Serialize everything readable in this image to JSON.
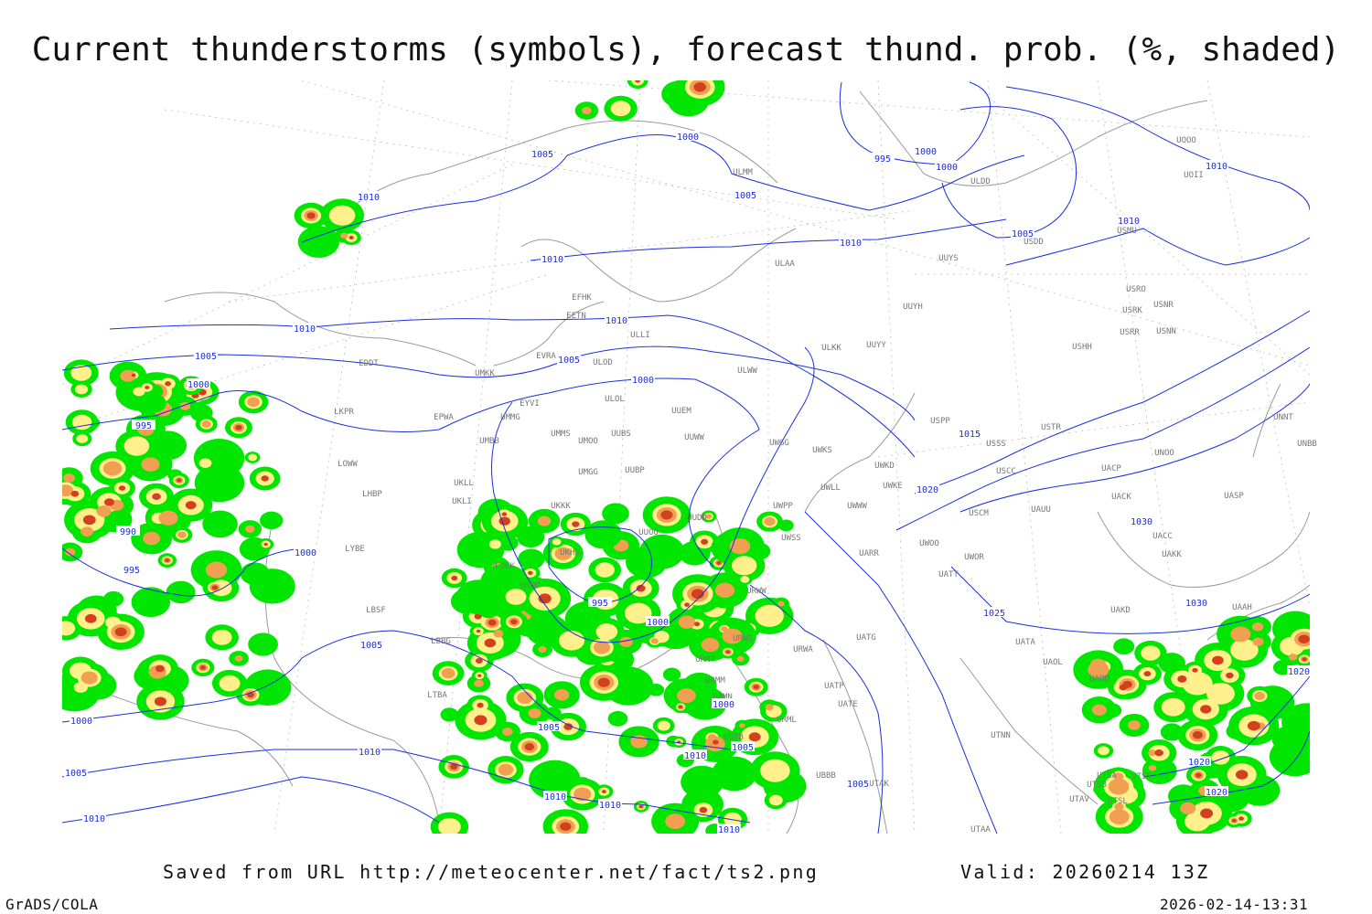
{
  "title": "Current thunderstorms (symbols), forecast thund. prob. (%, shaded)",
  "footer": {
    "source": "Saved from URL http://meteocenter.net/fact/ts2.png",
    "valid": "Valid: 20260214 13Z",
    "software": "GrADS/COLA",
    "timestamp": "2026-02-14-13:31"
  },
  "colors": {
    "isobar": "#1a2ee0",
    "coastline": "#9a9a9a",
    "prob_low": "#00e600",
    "prob_mid": "#fff08c",
    "prob_high": "#f0a050",
    "prob_max": "#d24020"
  },
  "stations": [
    "ULMM",
    "ULDD",
    "UOOO",
    "UOII",
    "USDD",
    "USMU",
    "ULAA",
    "UUYS",
    "UUYH",
    "USRO",
    "USRK",
    "USNR",
    "USRR",
    "USNN",
    "USHH",
    "ULKK",
    "UUYY",
    "EFHK",
    "EETN",
    "ULLI",
    "EVRA",
    "ULOD",
    "ULWW",
    "EDDT",
    "UMKK",
    "EYVI",
    "ULOL",
    "UUEM",
    "LKPR",
    "EPWA",
    "UMMG",
    "UMMS",
    "UMOO",
    "UUBS",
    "UUWW",
    "UMBB",
    "UWGG",
    "UWKS",
    "USPP",
    "USTR",
    "USSS",
    "UNNT",
    "UNBB",
    "UNOO",
    "LOWW",
    "UMGG",
    "UUBP",
    "UWKD",
    "UWKE",
    "UWLL",
    "UWWW",
    "USCC",
    "UACP",
    "UACK",
    "UASP",
    "LHBP",
    "UKLL",
    "UKLI",
    "UKKK",
    "UUDD",
    "UUOO",
    "UWPP",
    "USCM",
    "UAUU",
    "UWSS",
    "UACC",
    "UAKK",
    "LYBE",
    "LUKK",
    "UKHS",
    "UWOO",
    "UWOR",
    "UARR",
    "URWW",
    "UATT",
    "UKOO",
    "LBSF",
    "UAKD",
    "UAAH",
    "URWI",
    "UATG",
    "UATA",
    "URMT",
    "URWA",
    "UAOL",
    "UAOO",
    "URMM",
    "UATP",
    "URMN",
    "UATE",
    "LTBA",
    "URML",
    "UGTB",
    "UTNN",
    "UBBB",
    "UTAK",
    "UTSA",
    "UTSB",
    "UTAV",
    "UTSS",
    "UTAA",
    "UTSL",
    "LBBG"
  ],
  "isobar_labels": [
    "1005",
    "1000",
    "995",
    "1000",
    "1000",
    "1010",
    "1010",
    "1005",
    "1010",
    "1005",
    "1010",
    "1010",
    "1010",
    "1010",
    "1005",
    "1005",
    "1000",
    "1000",
    "995",
    "1015",
    "1020",
    "990",
    "995",
    "1000",
    "1030",
    "995",
    "1030",
    "1025",
    "1000",
    "1005",
    "1020",
    "1000",
    "1000",
    "1005",
    "1005",
    "1010",
    "1010",
    "1020",
    "1005",
    "1005",
    "1020",
    "1010",
    "1010",
    "1010",
    "1010"
  ]
}
